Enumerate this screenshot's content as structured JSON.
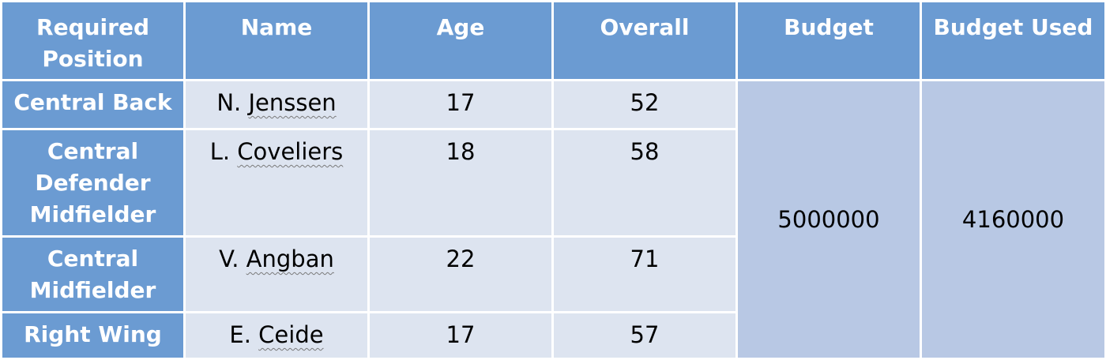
{
  "headers": {
    "position": "Required Position",
    "name": "Name",
    "age": "Age",
    "overall": "Overall",
    "budget": "Budget",
    "budget_used": "Budget Used"
  },
  "rows": [
    {
      "position": "Central Back",
      "name_initial": "N.",
      "name_surname": "Jenssen",
      "age": "17",
      "overall": "52"
    },
    {
      "position": "Central Defender Midfielder",
      "name_initial": "L.",
      "name_surname": "Coveliers",
      "age": "18",
      "overall": "58"
    },
    {
      "position": "Central Midfielder",
      "name_initial": "V.",
      "name_surname": "Angban",
      "age": "22",
      "overall": "71"
    },
    {
      "position": "Right Wing",
      "name_initial": "E.",
      "name_surname": "Ceide",
      "age": "17",
      "overall": "57"
    }
  ],
  "budget": "5000000",
  "budget_used": "4160000",
  "colors": {
    "header_bg": "#6b9bd2",
    "cell_bg": "#dde4f0",
    "merged_bg": "#b8c8e4"
  }
}
